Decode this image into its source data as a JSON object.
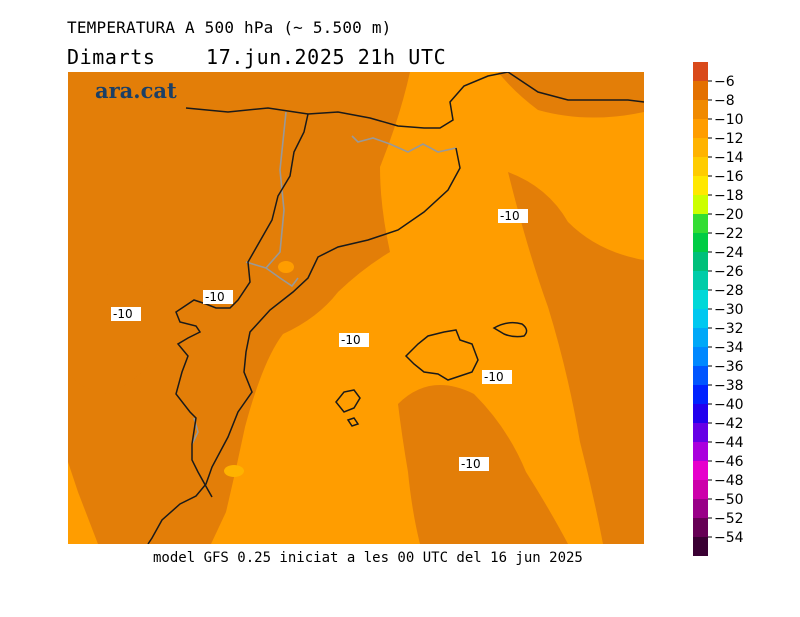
{
  "header": {
    "title": "TEMPERATURA A 500 hPa (~ 5.500 m)",
    "subtitle": "Dimarts    17.jun.2025 21h UTC"
  },
  "footer": {
    "model_text": "model GFS 0.25 iniciat a les 00 UTC del 16 jun 2025"
  },
  "map": {
    "logo": "ara.cat",
    "contour_labels": [
      "-10",
      "-10",
      "-10",
      "-10",
      "-10",
      "-10"
    ],
    "colors": {
      "warmer_band": "#e37e08",
      "cooler_band": "#ff9d00",
      "coast": "#1a1a1a",
      "border": "#999999"
    }
  },
  "legend": {
    "labels": [
      "−6",
      "−8",
      "−10",
      "−12",
      "−14",
      "−16",
      "−18",
      "−20",
      "−22",
      "−24",
      "−26",
      "−28",
      "−30",
      "−32",
      "−34",
      "−36",
      "−38",
      "−40",
      "−42",
      "−44",
      "−46",
      "−48",
      "−50",
      "−52",
      "−54"
    ],
    "colors": [
      "#d9491a",
      "#e37000",
      "#f08a00",
      "#ff9d00",
      "#ffb300",
      "#ffcc00",
      "#ffe800",
      "#ccff00",
      "#33dd33",
      "#00cc44",
      "#00c07a",
      "#00cca8",
      "#00d8d8",
      "#00c8f0",
      "#00a8f8",
      "#0088ff",
      "#0055ff",
      "#0022ff",
      "#2200ee",
      "#6600e6",
      "#aa00dd",
      "#e600cc",
      "#cc00aa",
      "#990088",
      "#660055",
      "#3a0033"
    ]
  }
}
